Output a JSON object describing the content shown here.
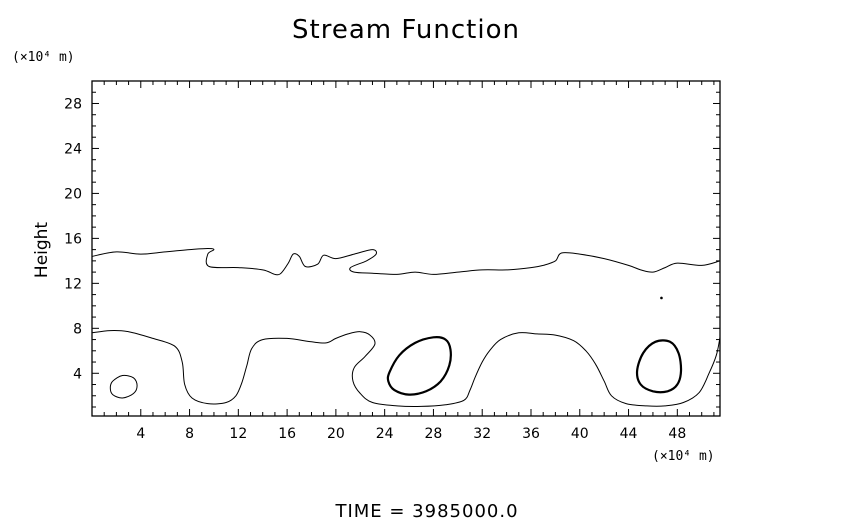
{
  "chart_data": {
    "type": "contour",
    "title": "Stream Function",
    "xlabel": "",
    "ylabel": "Height",
    "x_unit": "(×10⁴ m)",
    "y_unit": "(×10⁴ m)",
    "xlim": [
      0,
      51.5
    ],
    "ylim": [
      0.2,
      30
    ],
    "x_ticks": [
      4,
      8,
      12,
      16,
      20,
      24,
      28,
      32,
      36,
      40,
      44,
      48
    ],
    "y_ticks": [
      4,
      8,
      12,
      16,
      20,
      24,
      28
    ],
    "grid": false,
    "footer": "TIME  =  3985000.0",
    "contours": [
      {
        "name": "upper",
        "closed": false,
        "bold": false,
        "points": [
          [
            0,
            14.4
          ],
          [
            2,
            14.8
          ],
          [
            4,
            14.6
          ],
          [
            6,
            14.8
          ],
          [
            8,
            15.0
          ],
          [
            9.5,
            15.1
          ],
          [
            10,
            15.0
          ],
          [
            9.5,
            14.6
          ],
          [
            9.6,
            13.5
          ],
          [
            12,
            13.4
          ],
          [
            14,
            13.2
          ],
          [
            15,
            12.8
          ],
          [
            15.5,
            12.9
          ],
          [
            16.1,
            13.8
          ],
          [
            16.5,
            14.6
          ],
          [
            17,
            14.4
          ],
          [
            17.5,
            13.5
          ],
          [
            18.5,
            13.7
          ],
          [
            19,
            14.5
          ],
          [
            20,
            14.2
          ],
          [
            21.5,
            14.6
          ],
          [
            23,
            15.0
          ],
          [
            23.3,
            14.6
          ],
          [
            22.5,
            14.0
          ],
          [
            21.2,
            13.4
          ],
          [
            21.5,
            13.0
          ],
          [
            23,
            12.9
          ],
          [
            25,
            12.8
          ],
          [
            26.5,
            13.0
          ],
          [
            28,
            12.8
          ],
          [
            30,
            13.0
          ],
          [
            32,
            13.2
          ],
          [
            34,
            13.2
          ],
          [
            36,
            13.4
          ],
          [
            37,
            13.6
          ],
          [
            38,
            14.0
          ],
          [
            38.5,
            14.7
          ],
          [
            40,
            14.6
          ],
          [
            42,
            14.2
          ],
          [
            44,
            13.6
          ],
          [
            45,
            13.2
          ],
          [
            46,
            13.0
          ],
          [
            47,
            13.4
          ],
          [
            48,
            13.8
          ],
          [
            50,
            13.6
          ],
          [
            51.5,
            14.0
          ]
        ]
      },
      {
        "name": "lower",
        "closed": false,
        "bold": false,
        "points": [
          [
            0,
            7.6
          ],
          [
            1.5,
            7.8
          ],
          [
            3,
            7.7
          ],
          [
            5,
            7.1
          ],
          [
            6.8,
            6.4
          ],
          [
            7.4,
            5.0
          ],
          [
            7.6,
            3.0
          ],
          [
            8.2,
            1.8
          ],
          [
            9.5,
            1.3
          ],
          [
            11,
            1.4
          ],
          [
            11.8,
            2.0
          ],
          [
            12.3,
            3.2
          ],
          [
            12.7,
            4.7
          ],
          [
            13.1,
            6.2
          ],
          [
            14,
            7.0
          ],
          [
            16,
            7.1
          ],
          [
            18,
            6.8
          ],
          [
            19.2,
            6.7
          ],
          [
            20,
            7.1
          ],
          [
            21,
            7.5
          ],
          [
            22,
            7.7
          ],
          [
            22.8,
            7.4
          ],
          [
            23.2,
            6.6
          ],
          [
            22.4,
            5.5
          ],
          [
            21.5,
            4.5
          ],
          [
            21.4,
            3.3
          ],
          [
            22,
            2.2
          ],
          [
            23,
            1.4
          ],
          [
            25,
            1.1
          ],
          [
            27,
            1.05
          ],
          [
            29,
            1.2
          ],
          [
            30.5,
            1.6
          ],
          [
            31,
            2.5
          ],
          [
            31.4,
            3.6
          ],
          [
            32,
            5.0
          ],
          [
            32.6,
            6.0
          ],
          [
            33.5,
            7.0
          ],
          [
            35,
            7.6
          ],
          [
            36.5,
            7.5
          ],
          [
            38,
            7.4
          ],
          [
            39.5,
            6.9
          ],
          [
            40.5,
            6.0
          ],
          [
            41.3,
            4.8
          ],
          [
            42,
            3.3
          ],
          [
            42.6,
            2.0
          ],
          [
            43.8,
            1.3
          ],
          [
            45.5,
            1.1
          ],
          [
            47,
            1.1
          ],
          [
            48.5,
            1.4
          ],
          [
            49.8,
            2.3
          ],
          [
            50.6,
            4.0
          ],
          [
            51.2,
            5.6
          ],
          [
            51.5,
            7.2
          ]
        ]
      },
      {
        "name": "small-left",
        "closed": true,
        "bold": false,
        "points": [
          [
            1.5,
            2.7
          ],
          [
            1.7,
            3.3
          ],
          [
            2.5,
            3.8
          ],
          [
            3.4,
            3.6
          ],
          [
            3.7,
            2.9
          ],
          [
            3.4,
            2.2
          ],
          [
            2.5,
            1.8
          ],
          [
            1.7,
            2.1
          ]
        ]
      },
      {
        "name": "center-oval",
        "closed": true,
        "bold": true,
        "points": [
          [
            24.4,
            4.1
          ],
          [
            25.2,
            5.6
          ],
          [
            26.5,
            6.7
          ],
          [
            28,
            7.2
          ],
          [
            29,
            7.0
          ],
          [
            29.4,
            6.1
          ],
          [
            29.3,
            4.7
          ],
          [
            28.6,
            3.3
          ],
          [
            27.4,
            2.4
          ],
          [
            26,
            2.1
          ],
          [
            24.8,
            2.5
          ],
          [
            24.3,
            3.3
          ]
        ]
      },
      {
        "name": "right-oval",
        "closed": true,
        "bold": true,
        "points": [
          [
            44.7,
            4.2
          ],
          [
            45.2,
            5.8
          ],
          [
            46.2,
            6.8
          ],
          [
            47.4,
            6.8
          ],
          [
            48.1,
            5.8
          ],
          [
            48.3,
            4.2
          ],
          [
            48,
            3.0
          ],
          [
            47.2,
            2.4
          ],
          [
            46,
            2.4
          ],
          [
            45,
            3.0
          ]
        ]
      }
    ],
    "dots": [
      [
        46.7,
        10.7
      ]
    ]
  }
}
